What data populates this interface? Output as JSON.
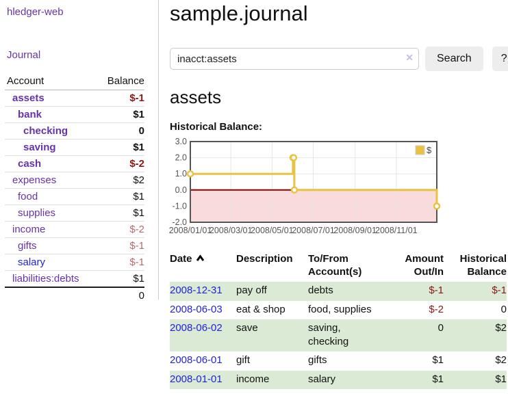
{
  "app": {
    "brand": "hledger-web",
    "nav_journal": "Journal"
  },
  "sidebar": {
    "header": {
      "account": "Account",
      "balance": "Balance"
    },
    "accounts": [
      {
        "name": "assets",
        "indent": 1,
        "bold": true,
        "color": "purple",
        "balance": "$-1",
        "amount_class": "neg-strong"
      },
      {
        "name": "bank",
        "indent": 2,
        "bold": true,
        "color": "purple",
        "balance": "$1",
        "amount_class": ""
      },
      {
        "name": "checking",
        "indent": 3,
        "bold": true,
        "color": "purple",
        "balance": "0",
        "amount_class": ""
      },
      {
        "name": "saving",
        "indent": 3,
        "bold": true,
        "color": "purple",
        "balance": "$1",
        "amount_class": ""
      },
      {
        "name": "cash",
        "indent": 2,
        "bold": true,
        "color": "purple",
        "balance": "$-2",
        "amount_class": "neg-strong"
      },
      {
        "name": "expenses",
        "indent": 1,
        "bold": false,
        "color": "purple",
        "balance": "$2",
        "amount_class": ""
      },
      {
        "name": "food",
        "indent": 2,
        "bold": false,
        "color": "purple",
        "balance": "$1",
        "amount_class": ""
      },
      {
        "name": "supplies",
        "indent": 2,
        "bold": false,
        "color": "purple",
        "balance": "$1",
        "amount_class": ""
      },
      {
        "name": "income",
        "indent": 1,
        "bold": false,
        "color": "purple",
        "balance": "$-2",
        "amount_class": "neg-soft"
      },
      {
        "name": "gifts",
        "indent": 2,
        "bold": false,
        "color": "purple",
        "balance": "$-1",
        "amount_class": "neg-soft"
      },
      {
        "name": "salary",
        "indent": 2,
        "bold": false,
        "color": "blue",
        "balance": "$-1",
        "amount_class": "neg-soft"
      },
      {
        "name": "liabilities:debts",
        "indent": 1,
        "bold": false,
        "color": "purple",
        "balance": "$1",
        "amount_class": ""
      }
    ],
    "total": "0"
  },
  "main": {
    "title": "sample.journal",
    "search": {
      "value": "inacct:assets",
      "clear_icon": "✕",
      "button_label": "Search",
      "help_label": "?"
    },
    "account_heading": "assets",
    "chart_title": "Historical Balance:"
  },
  "chart_data": {
    "type": "line",
    "style": "step",
    "title": "Historical Balance:",
    "series": [
      {
        "name": "$",
        "color": "#e8c240",
        "points": [
          [
            "2008-01-01",
            1
          ],
          [
            "2008-06-01",
            2
          ],
          [
            "2008-06-02",
            2
          ],
          [
            "2008-06-03",
            0
          ],
          [
            "2008-12-31",
            -1
          ]
        ]
      }
    ],
    "xlim": [
      "2008-01-01",
      "2008-12-31"
    ],
    "ylim": [
      -2,
      3
    ],
    "x_ticks": [
      {
        "date": "2008-01-01",
        "label": "2008/01/01"
      },
      {
        "date": "2008-03-01",
        "label": "2008/03/01"
      },
      {
        "date": "2008-05-01",
        "label": "2008/05/01"
      },
      {
        "date": "2008-07-01",
        "label": "2008/07/01"
      },
      {
        "date": "2008-09-01",
        "label": "2008/09/01"
      },
      {
        "date": "2008-11-01",
        "label": "2008/11/01"
      }
    ],
    "y_ticks": [
      {
        "v": 3,
        "label": "3.0"
      },
      {
        "v": 2,
        "label": "2.0"
      },
      {
        "v": 1,
        "label": "1.0"
      },
      {
        "v": 0,
        "label": "0.0"
      },
      {
        "v": -1,
        "label": "-1.0"
      },
      {
        "v": -2,
        "label": "-2.0"
      }
    ],
    "grid": true,
    "legend_position": "top-right",
    "colors": {
      "below_zero_fill": "#f9dbdb",
      "zero_line": "#8b0000",
      "grid": "#e5e5e5",
      "border": "#545454",
      "tick_text": "#545454"
    }
  },
  "register": {
    "headers": {
      "date": "Date",
      "description": "Description",
      "accounts": "To/From Account(s)",
      "amount": "Amount Out/In",
      "balance": "Historical Balance"
    },
    "rows": [
      {
        "date": "2008-12-31",
        "description": "pay off",
        "accounts": "debts",
        "amount": "$-1",
        "amount_negative": true,
        "balance": "$-1",
        "balance_negative": true
      },
      {
        "date": "2008-06-03",
        "description": "eat & shop",
        "accounts": "food, supplies",
        "amount": "$-2",
        "amount_negative": true,
        "balance": "0",
        "balance_negative": false
      },
      {
        "date": "2008-06-02",
        "description": "save",
        "accounts": "saving, checking",
        "amount": "0",
        "amount_negative": false,
        "balance": "$2",
        "balance_negative": false
      },
      {
        "date": "2008-06-01",
        "description": "gift",
        "accounts": "gifts",
        "amount": "$1",
        "amount_negative": false,
        "balance": "$2",
        "balance_negative": false
      },
      {
        "date": "2008-01-01",
        "description": "income",
        "accounts": "salary",
        "amount": "$1",
        "amount_negative": false,
        "balance": "$1",
        "balance_negative": false
      }
    ]
  }
}
